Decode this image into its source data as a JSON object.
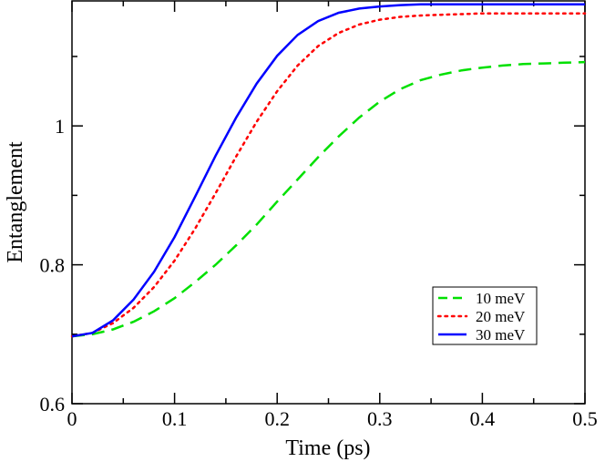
{
  "chart_data": {
    "type": "line",
    "title": "",
    "xlabel": "Time (ps)",
    "ylabel": "Entanglement",
    "xlim": [
      0,
      0.5
    ],
    "ylim": [
      0.6,
      1.18
    ],
    "xticks": [
      0,
      0.1,
      0.2,
      0.3,
      0.4,
      0.5
    ],
    "xtick_labels": [
      "0",
      "0.1",
      "0.2",
      "0.3",
      "0.4",
      "0.5"
    ],
    "yticks": [
      0.6,
      0.8,
      1.0
    ],
    "ytick_labels": [
      "0.6",
      "0.8",
      "1"
    ],
    "legend_position": "bottom-right",
    "grid": false,
    "x": [
      0,
      0.02,
      0.04,
      0.06,
      0.08,
      0.1,
      0.12,
      0.14,
      0.16,
      0.18,
      0.2,
      0.22,
      0.24,
      0.26,
      0.28,
      0.3,
      0.32,
      0.34,
      0.36,
      0.38,
      0.4,
      0.42,
      0.44,
      0.46,
      0.48,
      0.5
    ],
    "series": [
      {
        "name": "10 meV",
        "color": "#00e000",
        "style": "dashed",
        "values": [
          0.697,
          0.7,
          0.707,
          0.718,
          0.733,
          0.752,
          0.775,
          0.8,
          0.828,
          0.858,
          0.891,
          0.923,
          0.955,
          0.985,
          1.012,
          1.035,
          1.053,
          1.066,
          1.074,
          1.08,
          1.084,
          1.087,
          1.089,
          1.09,
          1.091,
          1.092
        ]
      },
      {
        "name": "20 meV",
        "color": "#ff0000",
        "style": "dotted",
        "values": [
          0.697,
          0.702,
          0.716,
          0.738,
          0.768,
          0.806,
          0.852,
          0.903,
          0.956,
          1.006,
          1.05,
          1.087,
          1.115,
          1.134,
          1.146,
          1.153,
          1.157,
          1.159,
          1.16,
          1.161,
          1.162,
          1.162,
          1.162,
          1.162,
          1.162,
          1.162
        ]
      },
      {
        "name": "30 meV",
        "color": "#0000ff",
        "style": "solid",
        "values": [
          0.697,
          0.702,
          0.72,
          0.75,
          0.79,
          0.84,
          0.898,
          0.957,
          1.012,
          1.061,
          1.101,
          1.131,
          1.151,
          1.163,
          1.169,
          1.172,
          1.174,
          1.175,
          1.175,
          1.175,
          1.175,
          1.175,
          1.175,
          1.175,
          1.175,
          1.175
        ]
      }
    ]
  }
}
